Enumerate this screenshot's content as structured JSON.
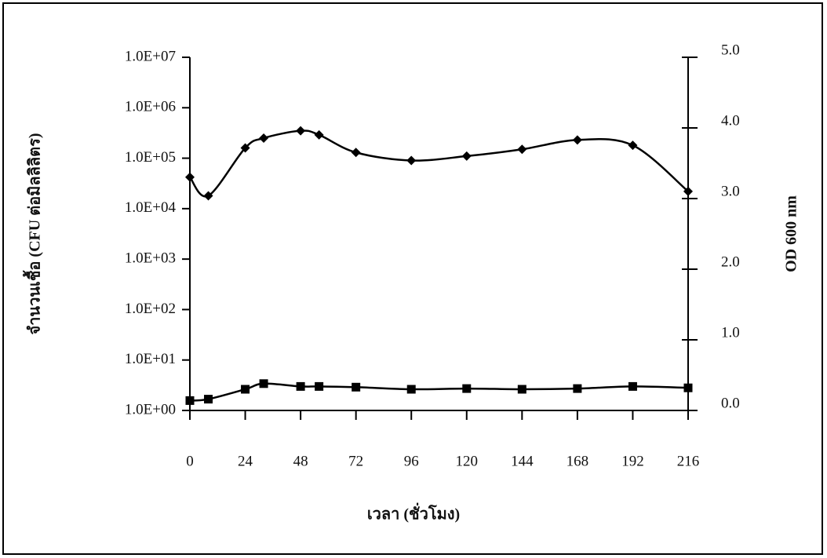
{
  "chart_data": {
    "type": "line",
    "x_label": "เวลา (ชั่วโมง)",
    "y_label": "จำนวนเชื้อ (CFU ต่อมิลลิลิตร)",
    "y2_label": "OD 600 nm",
    "x": [
      0,
      8,
      24,
      32,
      48,
      56,
      72,
      96,
      120,
      144,
      168,
      192,
      216
    ],
    "xlim": [
      0,
      216
    ],
    "xticks": [
      0,
      24,
      48,
      72,
      96,
      120,
      144,
      168,
      192,
      216
    ],
    "yscale": "log",
    "ylim": [
      1,
      10000000
    ],
    "yticks": [
      {
        "value": 1,
        "label": "1.0E+00"
      },
      {
        "value": 10,
        "label": "1.0E+01"
      },
      {
        "value": 100,
        "label": "1.0E+02"
      },
      {
        "value": 1000,
        "label": "1.0E+03"
      },
      {
        "value": 10000,
        "label": "1.0E+04"
      },
      {
        "value": 100000,
        "label": "1.0E+05"
      },
      {
        "value": 1000000,
        "label": "1.0E+06"
      },
      {
        "value": 10000000,
        "label": "1.0E+07"
      }
    ],
    "y2lim": [
      0,
      5
    ],
    "y2ticks": [
      {
        "value": 0,
        "label": "0.0"
      },
      {
        "value": 1,
        "label": "1.0"
      },
      {
        "value": 2,
        "label": "2.0"
      },
      {
        "value": 3,
        "label": "3.0"
      },
      {
        "value": 4,
        "label": "4.0"
      },
      {
        "value": 5,
        "label": "5.0"
      }
    ],
    "grid": false,
    "series": [
      {
        "color": "#000000",
        "marker": "diamond",
        "values": [
          42000,
          18000,
          160000,
          250000,
          350000,
          290000,
          130000,
          90000,
          110000,
          150000,
          230000,
          180000,
          22000
        ]
      },
      {
        "color": "#000000",
        "marker": "square",
        "axis": "y2",
        "values": [
          0.14,
          0.16,
          0.3,
          0.38,
          0.34,
          0.34,
          0.33,
          0.3,
          0.31,
          0.3,
          0.31,
          0.34,
          0.32
        ]
      }
    ]
  }
}
